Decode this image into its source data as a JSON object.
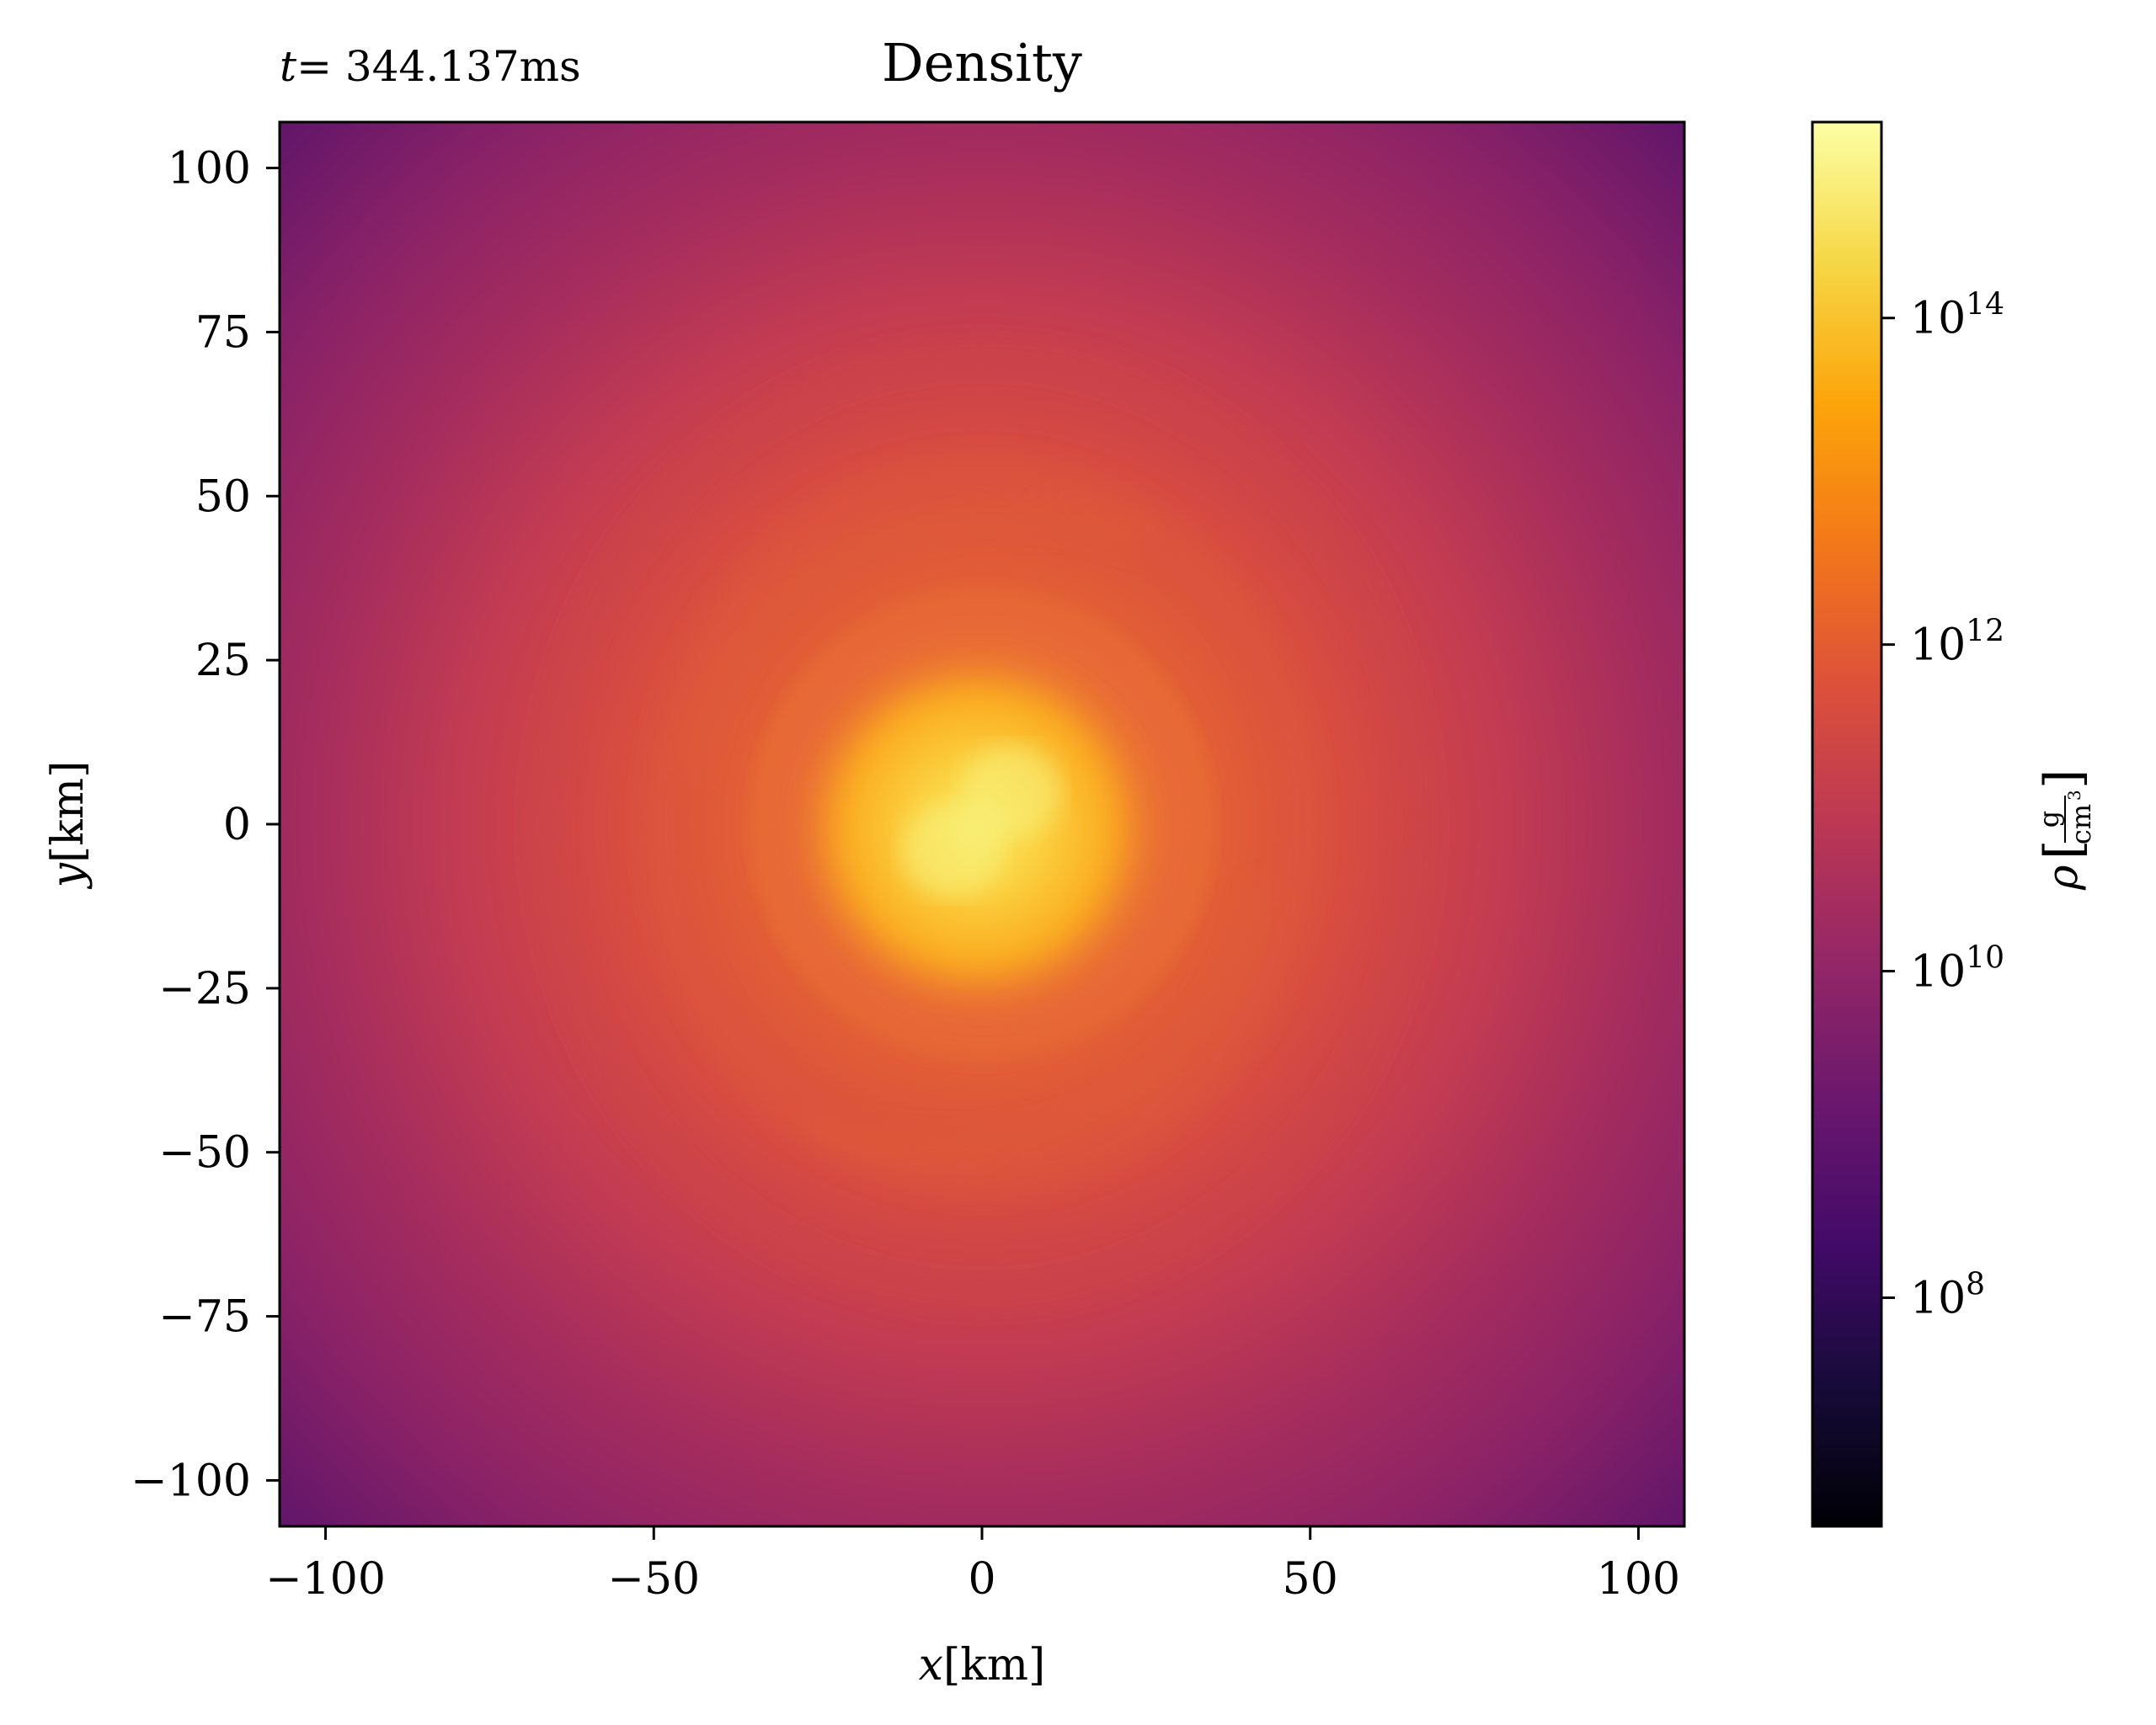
{
  "chart_data": {
    "type": "heatmap",
    "title": "Density",
    "time_label": {
      "var": "t",
      "text": "= 344.137ms"
    },
    "xlabel": {
      "var": "x",
      "unit": "[km]"
    },
    "ylabel": {
      "var": "y",
      "unit": "[km]"
    },
    "xlim": [
      -107,
      107
    ],
    "ylim": [
      -107,
      107
    ],
    "xticks": [
      {
        "value": -100,
        "label": "−100"
      },
      {
        "value": -50,
        "label": "−50"
      },
      {
        "value": 0,
        "label": "0"
      },
      {
        "value": 50,
        "label": "50"
      },
      {
        "value": 100,
        "label": "100"
      }
    ],
    "yticks": [
      {
        "value": 100,
        "label": "100"
      },
      {
        "value": 75,
        "label": "75"
      },
      {
        "value": 50,
        "label": "50"
      },
      {
        "value": 25,
        "label": "25"
      },
      {
        "value": 0,
        "label": "0"
      },
      {
        "value": -25,
        "label": "−25"
      },
      {
        "value": -50,
        "label": "−50"
      },
      {
        "value": -75,
        "label": "−75"
      },
      {
        "value": -100,
        "label": "−100"
      }
    ],
    "colormap": "inferno",
    "colorbar": {
      "scale": "log",
      "min_exponent": 6.6,
      "max_exponent": 15.2,
      "ticks": [
        {
          "exponent": 8,
          "base": "10",
          "exp_label": "8"
        },
        {
          "exponent": 10,
          "base": "10",
          "exp_label": "10"
        },
        {
          "exponent": 12,
          "base": "10",
          "exp_label": "12"
        },
        {
          "exponent": 14,
          "base": "10",
          "exp_label": "14"
        }
      ],
      "label": {
        "symbol": "ρ",
        "numerator": "g",
        "denominator": "cm",
        "denominator_power": "3"
      }
    },
    "field_features": {
      "core_log_density": 14.2,
      "core_center_km": [
        0,
        0
      ],
      "core_radius_km": 22,
      "inner_spiral_log_density": 12.0,
      "outer_disk_log_density": 10.6,
      "corner_log_density": 9.4
    }
  }
}
